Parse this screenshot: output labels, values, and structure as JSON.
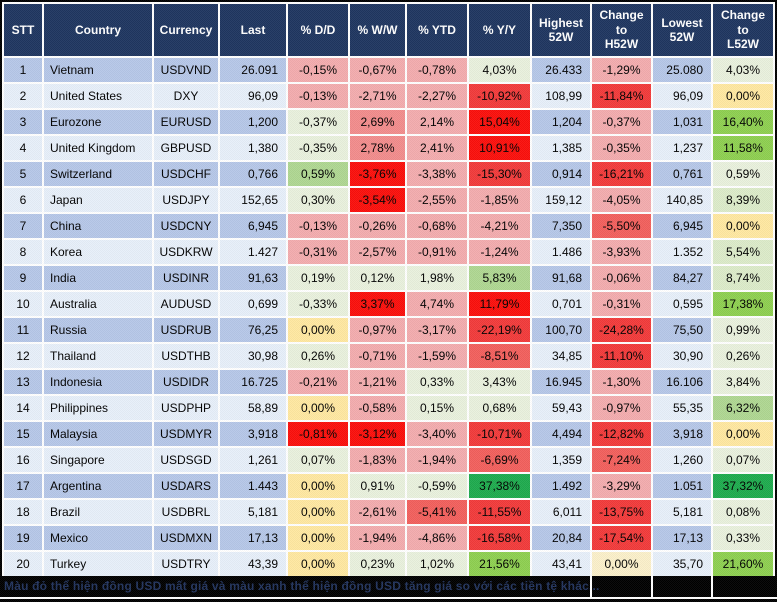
{
  "title": "FX rates heatmap table",
  "header": {
    "labels": [
      "STT",
      "Country",
      "Currency",
      "Last",
      "% D/D",
      "% W/W",
      "% YTD",
      "% Y/Y",
      "Highest\n52W",
      "Change\nto\nH52W",
      "Lowest\n52W",
      "Change\nto\nL52W"
    ]
  },
  "chart_data": {
    "type": "table",
    "columns": [
      "STT",
      "Country",
      "Currency",
      "Last",
      "% D/D",
      "% W/W",
      "% YTD",
      "% Y/Y",
      "Highest 52W",
      "Change to H52W",
      "Lowest 52W",
      "Change to L52W"
    ],
    "rows": [
      [
        "1",
        "Vietnam",
        "USDVND",
        "26.091",
        "-0,15%",
        "-0,67%",
        "-0,78%",
        "4,03%",
        "26.433",
        "-1,29%",
        "25.080",
        "4,03%"
      ],
      [
        "2",
        "United States",
        "DXY",
        "96,09",
        "-0,13%",
        "-2,71%",
        "-2,27%",
        "-10,92%",
        "108,99",
        "-11,84%",
        "96,09",
        "0,00%"
      ],
      [
        "3",
        "Eurozone",
        "EURUSD",
        "1,200",
        "-0,37%",
        "2,69%",
        "2,14%",
        "15,04%",
        "1,204",
        "-0,37%",
        "1,031",
        "16,40%"
      ],
      [
        "4",
        "United Kingdom",
        "GBPUSD",
        "1,380",
        "-0,35%",
        "2,78%",
        "2,41%",
        "10,91%",
        "1,385",
        "-0,35%",
        "1,237",
        "11,58%"
      ],
      [
        "5",
        "Switzerland",
        "USDCHF",
        "0,766",
        "0,59%",
        "-3,76%",
        "-3,38%",
        "-15,30%",
        "0,914",
        "-16,21%",
        "0,761",
        "0,59%"
      ],
      [
        "6",
        "Japan",
        "USDJPY",
        "152,65",
        "0,30%",
        "-3,54%",
        "-2,55%",
        "-1,85%",
        "159,12",
        "-4,05%",
        "140,85",
        "8,39%"
      ],
      [
        "7",
        "China",
        "USDCNY",
        "6,945",
        "-0,13%",
        "-0,26%",
        "-0,68%",
        "-4,21%",
        "7,350",
        "-5,50%",
        "6,945",
        "0,00%"
      ],
      [
        "8",
        "Korea",
        "USDKRW",
        "1.427",
        "-0,31%",
        "-2,57%",
        "-0,91%",
        "-1,24%",
        "1.486",
        "-3,93%",
        "1.352",
        "5,54%"
      ],
      [
        "9",
        "India",
        "USDINR",
        "91,63",
        "0,19%",
        "0,12%",
        "1,98%",
        "5,83%",
        "91,68",
        "-0,06%",
        "84,27",
        "8,74%"
      ],
      [
        "10",
        "Australia",
        "AUDUSD",
        "0,699",
        "-0,33%",
        "3,37%",
        "4,74%",
        "11,79%",
        "0,701",
        "-0,31%",
        "0,595",
        "17,38%"
      ],
      [
        "11",
        "Russia",
        "USDRUB",
        "76,25",
        "0,00%",
        "-0,97%",
        "-3,17%",
        "-22,19%",
        "100,70",
        "-24,28%",
        "75,50",
        "0,99%"
      ],
      [
        "12",
        "Thailand",
        "USDTHB",
        "30,98",
        "0,26%",
        "-0,71%",
        "-1,59%",
        "-8,51%",
        "34,85",
        "-11,10%",
        "30,90",
        "0,26%"
      ],
      [
        "13",
        "Indonesia",
        "USDIDR",
        "16.725",
        "-0,21%",
        "-1,21%",
        "0,33%",
        "3,43%",
        "16.945",
        "-1,30%",
        "16.106",
        "3,84%"
      ],
      [
        "14",
        "Philippines",
        "USDPHP",
        "58,89",
        "0,00%",
        "-0,58%",
        "0,15%",
        "0,68%",
        "59,43",
        "-0,97%",
        "55,35",
        "6,32%"
      ],
      [
        "15",
        "Malaysia",
        "USDMYR",
        "3,918",
        "-0,81%",
        "-3,12%",
        "-3,40%",
        "-10,71%",
        "4,494",
        "-12,82%",
        "3,918",
        "0,00%"
      ],
      [
        "16",
        "Singapore",
        "USDSGD",
        "1,261",
        "0,07%",
        "-1,83%",
        "-1,94%",
        "-6,69%",
        "1,359",
        "-7,24%",
        "1,260",
        "0,07%"
      ],
      [
        "17",
        "Argentina",
        "USDARS",
        "1.443",
        "0,00%",
        "0,91%",
        "-0,59%",
        "37,38%",
        "1.492",
        "-3,29%",
        "1.051",
        "37,32%"
      ],
      [
        "18",
        "Brazil",
        "USDBRL",
        "5,181",
        "0,00%",
        "-2,61%",
        "-5,41%",
        "-11,55%",
        "6,011",
        "-13,75%",
        "5,181",
        "0,08%"
      ],
      [
        "19",
        "Mexico",
        "USDMXN",
        "17,13",
        "0,00%",
        "-1,94%",
        "-4,86%",
        "-16,58%",
        "20,84",
        "-17,54%",
        "17,13",
        "0,33%"
      ],
      [
        "20",
        "Turkey",
        "USDTRY",
        "43,39",
        "0,00%",
        "0,23%",
        "1,02%",
        "21,56%",
        "43,41",
        "0,00%",
        "35,70",
        "21,60%"
      ]
    ]
  },
  "heatmap": {
    "colors": {
      "header": "#1F3660",
      "rowOdd": "#B6C7E8",
      "rowEven": "#E7EFFA",
      "red0": "#FB100C",
      "red1": "#F23B3B",
      "red2": "#F2605D",
      "red3": "#F28C8C",
      "red4": "#F3ACAE",
      "grn0": "#1FAB4E",
      "grn1": "#8ED051",
      "grn2": "#AFD792",
      "grn3": "#DCEBC9",
      "grn4": "#E9F1DD",
      "yel": "#FFE8A1",
      "cream": "#FBF0CA",
      "gridline": "#FFFFFF",
      "footer_bg": "#000000",
      "footer_text": "#22345E"
    },
    "cells": [
      [
        null,
        null,
        null,
        null,
        "red4",
        "red4",
        "red4",
        "grn4",
        null,
        "red4",
        null,
        "grn4"
      ],
      [
        null,
        null,
        null,
        null,
        "red4",
        "red4",
        "red4",
        "red1",
        null,
        "red1",
        null,
        "yel"
      ],
      [
        null,
        null,
        null,
        null,
        "grn4",
        "red3",
        "red4",
        "red0",
        null,
        "red4",
        null,
        "grn1"
      ],
      [
        null,
        null,
        null,
        null,
        "grn4",
        "red3",
        "red4",
        "red0",
        null,
        "red4",
        null,
        "grn1"
      ],
      [
        null,
        null,
        null,
        null,
        "grn2",
        "red0",
        "red4",
        "red1",
        null,
        "red1",
        null,
        "grn4"
      ],
      [
        null,
        null,
        null,
        null,
        "grn4",
        "red0",
        "red4",
        "red4",
        null,
        "red4",
        null,
        "grn3"
      ],
      [
        null,
        null,
        null,
        null,
        "red4",
        "red4",
        "red4",
        "red4",
        null,
        "red2",
        null,
        "yel"
      ],
      [
        null,
        null,
        null,
        null,
        "red4",
        "red4",
        "red4",
        "red4",
        null,
        "red4",
        null,
        "grn3"
      ],
      [
        null,
        null,
        null,
        null,
        "grn4",
        "grn4",
        "grn4",
        "grn2",
        null,
        "red4",
        null,
        "grn3"
      ],
      [
        null,
        null,
        null,
        null,
        "grn4",
        "red0",
        "red4",
        "red0",
        null,
        "red4",
        null,
        "grn1"
      ],
      [
        null,
        null,
        null,
        null,
        "yel",
        "red4",
        "red4",
        "red1",
        null,
        "red1",
        null,
        "grn4"
      ],
      [
        null,
        null,
        null,
        null,
        "grn4",
        "red4",
        "red4",
        "red2",
        null,
        "red1",
        null,
        "grn4"
      ],
      [
        null,
        null,
        null,
        null,
        "red4",
        "red4",
        "grn4",
        "grn4",
        null,
        "red4",
        null,
        "grn4"
      ],
      [
        null,
        null,
        null,
        null,
        "yel",
        "red4",
        "grn4",
        "grn4",
        null,
        "red4",
        null,
        "grn2"
      ],
      [
        null,
        null,
        null,
        null,
        "red0",
        "red0",
        "red4",
        "red1",
        null,
        "red1",
        null,
        "yel"
      ],
      [
        null,
        null,
        null,
        null,
        "grn4",
        "red4",
        "red4",
        "red2",
        null,
        "red2",
        null,
        "grn4"
      ],
      [
        null,
        null,
        null,
        null,
        "yel",
        "grn4",
        "grn4",
        "grn0",
        null,
        "red4",
        null,
        "grn0"
      ],
      [
        null,
        null,
        null,
        null,
        "yel",
        "red4",
        "red2",
        "red1",
        null,
        "red1",
        null,
        "grn4"
      ],
      [
        null,
        null,
        null,
        null,
        "yel",
        "red4",
        "red4",
        "red1",
        null,
        "red1",
        null,
        "grn4"
      ],
      [
        null,
        null,
        null,
        null,
        "yel",
        "grn4",
        "grn4",
        "grn1",
        null,
        "cream",
        null,
        "grn1"
      ]
    ]
  },
  "footer": {
    "note": "Màu đỏ thể hiện đồng USD mất giá và màu xanh thể hiện đồng USD tăng giá so với các tiền tệ khác..."
  }
}
